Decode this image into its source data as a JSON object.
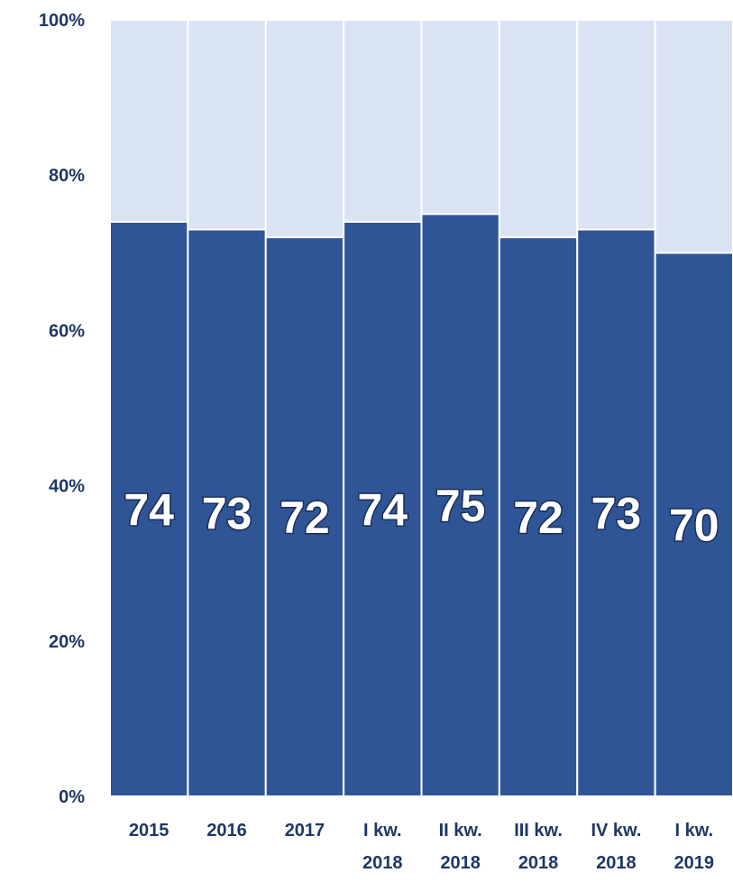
{
  "chart_data": {
    "type": "bar",
    "stacked": true,
    "percent_stacked": true,
    "categories": [
      "2015",
      "2016",
      "2017",
      "I kw. 2018",
      "II kw. 2018",
      "III kw. 2018",
      "IV kw. 2018",
      "I kw. 2019"
    ],
    "category_lines": [
      [
        "2015"
      ],
      [
        "2016"
      ],
      [
        "2017"
      ],
      [
        "I kw.",
        "2018"
      ],
      [
        "II kw.",
        "2018"
      ],
      [
        "III kw.",
        "2018"
      ],
      [
        "IV kw.",
        "2018"
      ],
      [
        "I kw.",
        "2019"
      ]
    ],
    "series": [
      {
        "values": [
          74,
          73,
          72,
          74,
          75,
          72,
          73,
          70
        ],
        "color": "#2f5597",
        "show_labels": true
      },
      {
        "values": [
          26,
          27,
          28,
          26,
          25,
          28,
          27,
          30
        ],
        "color": "#dae3f3",
        "show_labels": false
      }
    ],
    "ylim": [
      0,
      100
    ],
    "y_ticks": [
      "0%",
      "20%",
      "40%",
      "60%",
      "80%",
      "100%"
    ],
    "grid": false,
    "legend": "none",
    "title": "",
    "xlabel": "",
    "ylabel": ""
  }
}
